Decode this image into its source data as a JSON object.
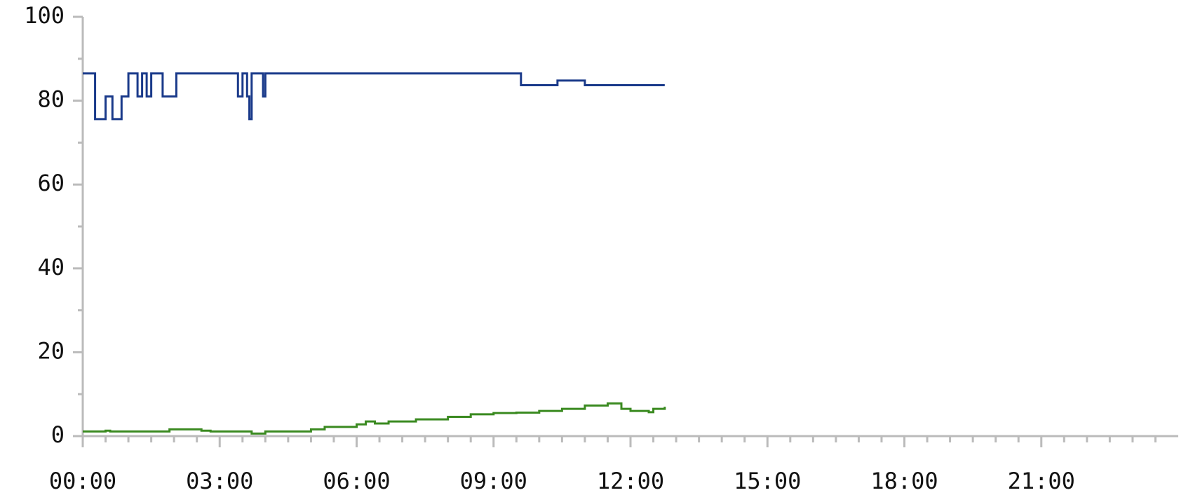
{
  "chart_data": {
    "type": "line",
    "step": true,
    "xlim": [
      0,
      24
    ],
    "xticks": [
      {
        "value": 0,
        "label": "00:00"
      },
      {
        "value": 3,
        "label": "03:00"
      },
      {
        "value": 6,
        "label": "06:00"
      },
      {
        "value": 9,
        "label": "09:00"
      },
      {
        "value": 12,
        "label": "12:00"
      },
      {
        "value": 15,
        "label": "15:00"
      },
      {
        "value": 18,
        "label": "18:00"
      },
      {
        "value": 21,
        "label": "21:00"
      }
    ],
    "ylim": [
      0,
      100
    ],
    "yticks": [
      0,
      20,
      40,
      60,
      80,
      100
    ],
    "series": [
      {
        "color": "#1a3a8a",
        "x": [
          0,
          0.27,
          0.5,
          0.65,
          0.85,
          1.0,
          1.2,
          1.3,
          1.4,
          1.5,
          1.75,
          2.05,
          3.4,
          3.5,
          3.6,
          3.65,
          3.7,
          3.95,
          4.0,
          9.6,
          10.4,
          11.0,
          12.75
        ],
        "values": [
          86.5,
          75.6,
          81,
          75.6,
          81,
          86.5,
          81,
          86.5,
          81,
          86.5,
          81,
          86.5,
          81,
          86.5,
          81,
          75.6,
          86.5,
          81,
          86.5,
          83.7,
          84.8,
          83.7,
          83.7
        ]
      },
      {
        "color": "#3a8a20",
        "x": [
          0,
          0.5,
          0.6,
          1.9,
          2.6,
          2.8,
          3.7,
          4.0,
          5.0,
          5.3,
          6.0,
          6.2,
          6.4,
          6.7,
          7.3,
          8.0,
          8.5,
          9.0,
          9.5,
          10.0,
          10.5,
          11.0,
          11.5,
          11.8,
          12.0,
          12.4,
          12.5,
          12.75
        ],
        "values": [
          1.1,
          1.3,
          1.1,
          1.6,
          1.3,
          1.1,
          0.6,
          1.1,
          1.6,
          2.2,
          2.8,
          3.5,
          3.0,
          3.5,
          4.0,
          4.6,
          5.2,
          5.5,
          5.6,
          6.0,
          6.5,
          7.3,
          7.8,
          6.5,
          6.0,
          5.7,
          6.5,
          7.0
        ]
      }
    ]
  }
}
